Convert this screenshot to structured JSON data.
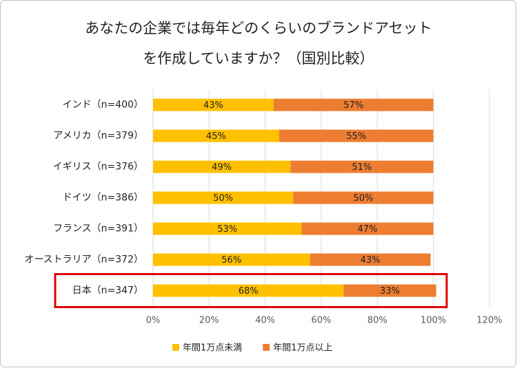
{
  "chart_data": {
    "type": "stacked-bar-horizontal",
    "title": [
      "あなたの企業では毎年どのくらいのブランドアセット",
      "を作成していますか？（国別比較）"
    ],
    "categories": [
      "インド（n=400）",
      "アメリカ（n=379）",
      "イギリス（n=376）",
      "ドイツ（n=386）",
      "フランス（n=391）",
      "オーストラリア（n=372）",
      "日本（n=347）"
    ],
    "series": [
      {
        "name": "年間1万点未満",
        "color": "#ffc000",
        "values": [
          43,
          45,
          49,
          50,
          53,
          56,
          68
        ],
        "value_labels": [
          "43%",
          "45%",
          "49%",
          "50%",
          "53%",
          "56%",
          "68%"
        ]
      },
      {
        "name": "年間1万点以上",
        "color": "#ed7d31",
        "values": [
          57,
          55,
          51,
          50,
          47,
          43,
          33
        ],
        "value_labels": [
          "57%",
          "55%",
          "51%",
          "50%",
          "47%",
          "43%",
          "33%"
        ]
      }
    ],
    "xlim": [
      0,
      120
    ],
    "xticks": [
      {
        "value": 0,
        "label": "0%"
      },
      {
        "value": 20,
        "label": "20%"
      },
      {
        "value": 40,
        "label": "40%"
      },
      {
        "value": 60,
        "label": "60%"
      },
      {
        "value": 80,
        "label": "80%"
      },
      {
        "value": 100,
        "label": "100%"
      },
      {
        "value": 120,
        "label": "120%"
      }
    ],
    "grid": true
  }
}
